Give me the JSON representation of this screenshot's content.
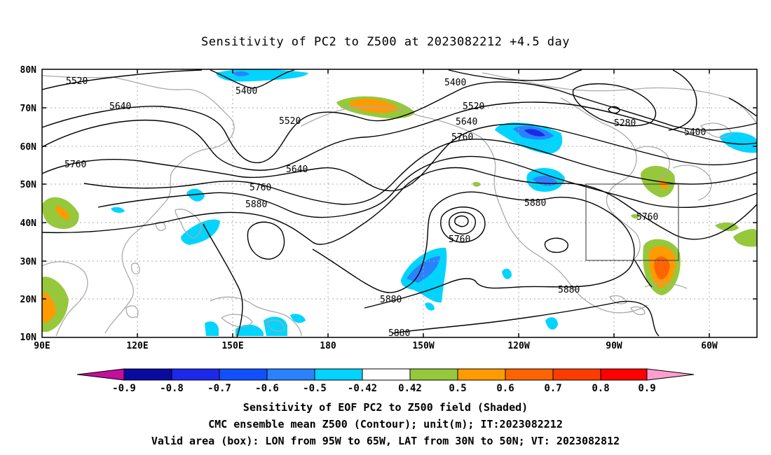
{
  "title": "Sensitivity of PC2 to Z500 at 2023082212 +4.5 day",
  "map": {
    "lat_labels": [
      "80N",
      "70N",
      "60N",
      "50N",
      "40N",
      "30N",
      "20N",
      "10N"
    ],
    "lon_labels": [
      "90E",
      "120E",
      "150E",
      "180",
      "150W",
      "120W",
      "90W",
      "60W"
    ],
    "contour_labels": [
      "5520",
      "5400",
      "5400",
      "5640",
      "5520",
      "5520",
      "5640",
      "5760",
      "5280",
      "5400",
      "5760",
      "5640",
      "5760",
      "5880",
      "5880",
      "5760",
      "5760",
      "5880",
      "5880",
      "5880"
    ],
    "colors": {
      "land": "#aaaaaa",
      "contour": "#000000",
      "grid": "#aaaaaa"
    },
    "valid_box": {
      "lon_from": "95W",
      "lon_to": "65W",
      "lat_from": "30N",
      "lat_to": "50N"
    }
  },
  "colorbar": {
    "labels": [
      "-0.9",
      "-0.8",
      "-0.7",
      "-0.6",
      "-0.5",
      "-0.42",
      "0.42",
      "0.5",
      "0.6",
      "0.7",
      "0.8",
      "0.9"
    ],
    "colors": [
      "#c40e9d",
      "#0a0aa0",
      "#1c28ea",
      "#1050ff",
      "#2a82ff",
      "#46bcff",
      "#00d4ff",
      "#ffffff",
      "#96c83c",
      "#ff9b00",
      "#ff6400",
      "#ff3c00",
      "#ff0000",
      "#ff9fcf"
    ]
  },
  "caption": {
    "line1": "Sensitivity of EOF PC2 to Z500 field (Shaded)",
    "line2": "CMC ensemble mean Z500 (Contour); unit(m); IT:2023082212",
    "line3": "Valid area (box): LON from 95W to 65W, LAT from 30N to 50N; VT: 2023082812"
  }
}
